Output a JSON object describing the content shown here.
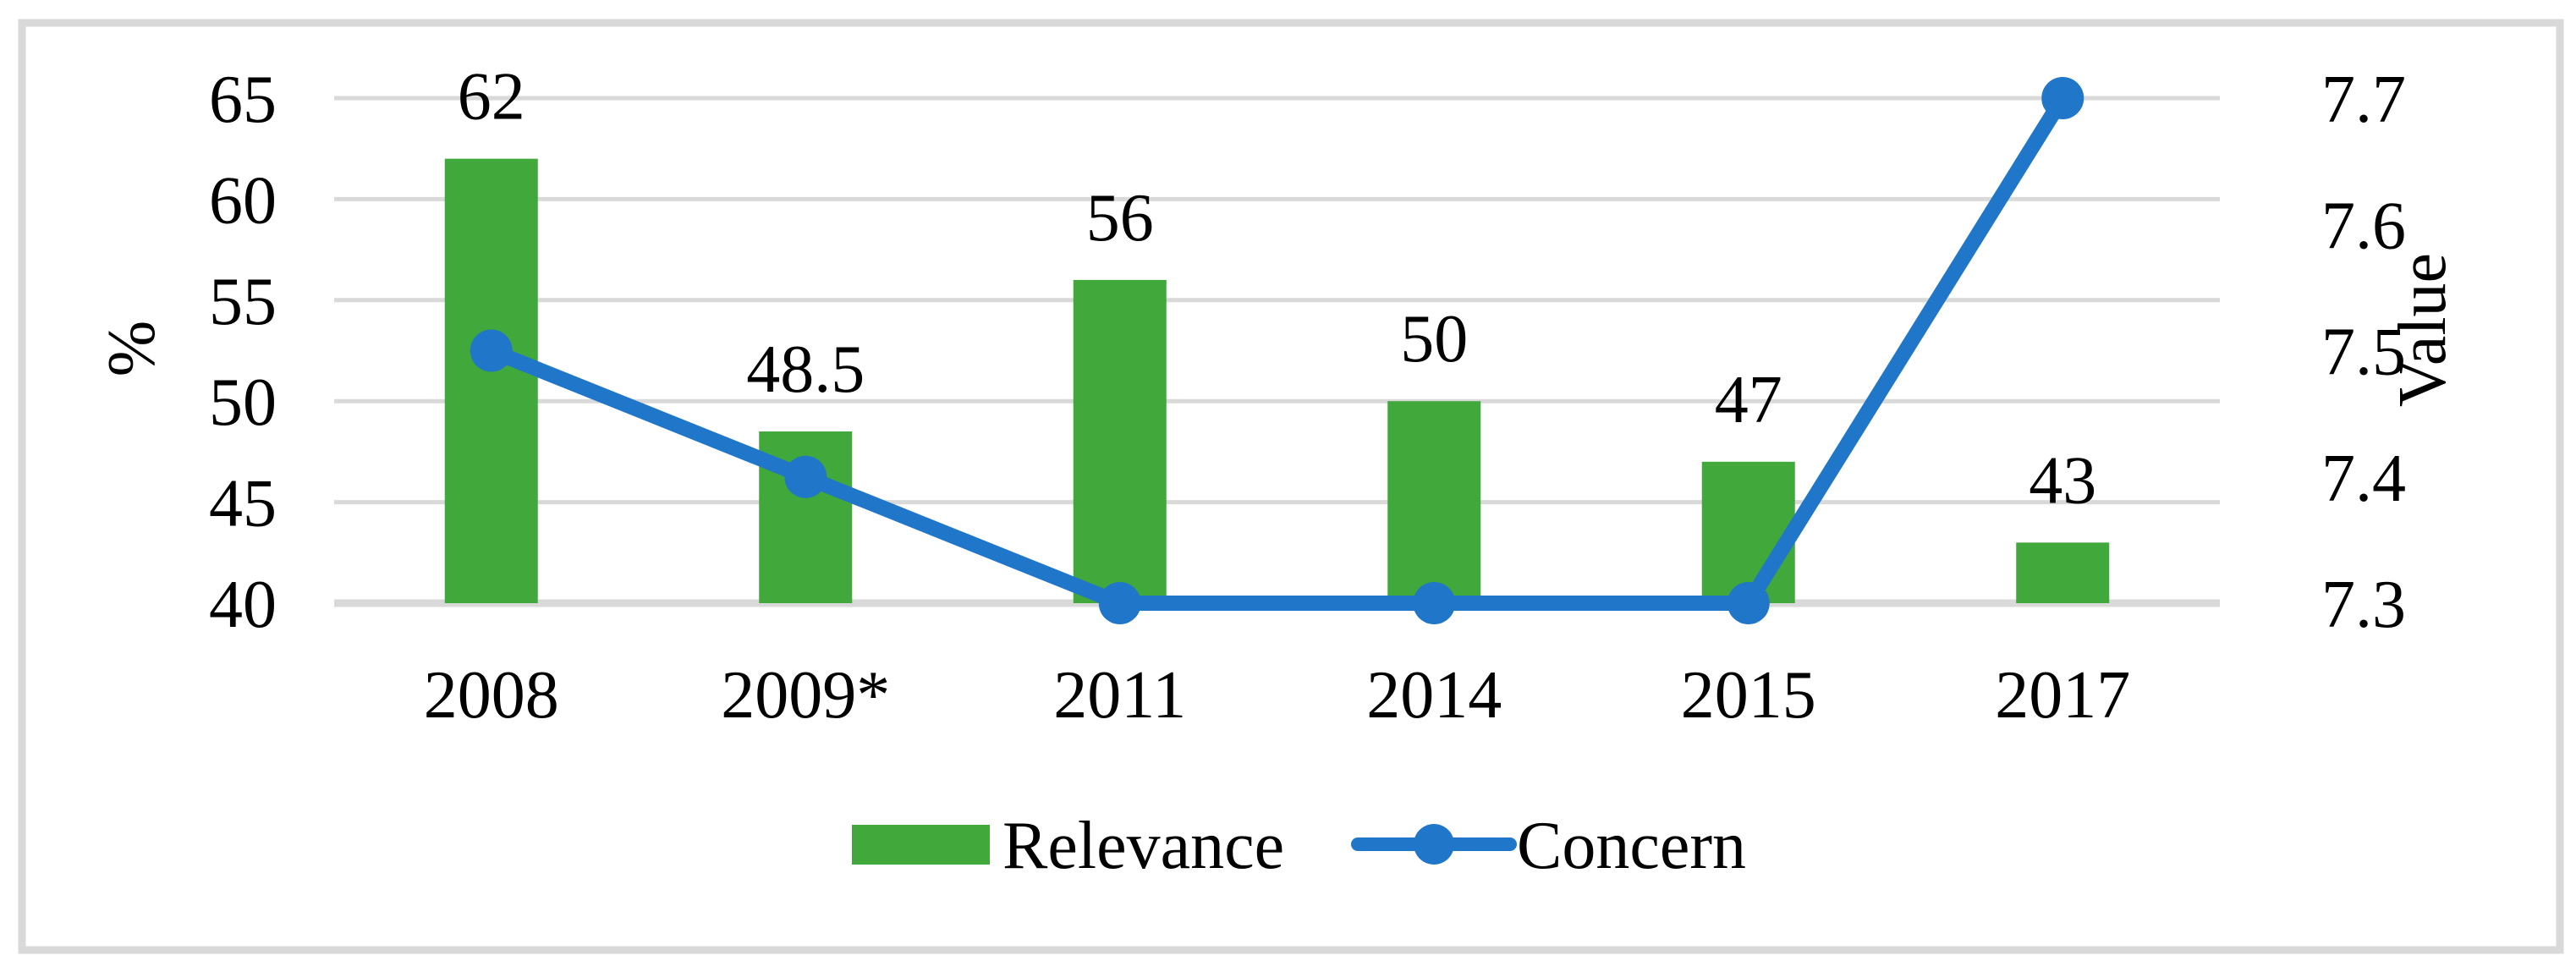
{
  "figure": {
    "background": "#FFFFFF",
    "border_color": "#D9D9D9"
  },
  "chart_data": {
    "type": "combo-bar-line",
    "categories": [
      "2008",
      "2009*",
      "2011",
      "2014",
      "2015",
      "2017"
    ],
    "series": [
      {
        "name": "Relevance",
        "type": "bar",
        "axis": "left",
        "color": "#41A83C",
        "values": [
          62,
          48.5,
          56,
          50,
          47,
          43
        ],
        "data_labels": [
          "62",
          "48.5",
          "56",
          "50",
          "47",
          "43"
        ]
      },
      {
        "name": "Concern",
        "type": "line",
        "axis": "right",
        "color": "#2076C8",
        "values": [
          7.5,
          7.4,
          7.3,
          7.3,
          7.3,
          7.7
        ]
      }
    ],
    "left_axis": {
      "title": "%",
      "min": 40,
      "max": 65,
      "step": 5,
      "tick_labels": [
        "65",
        "60",
        "55",
        "50",
        "45",
        "40"
      ]
    },
    "right_axis": {
      "title": "Value",
      "min": 7.3,
      "max": 7.7,
      "step": 0.1,
      "tick_labels": [
        "7.7",
        "7.6",
        "7.5",
        "7.4",
        "7.3"
      ]
    },
    "gridlines": "on",
    "gridline_color": "#D9D9D9",
    "axis_line_color": "#D9D9D9",
    "text_color": "#000000",
    "legend_position": "bottom"
  }
}
